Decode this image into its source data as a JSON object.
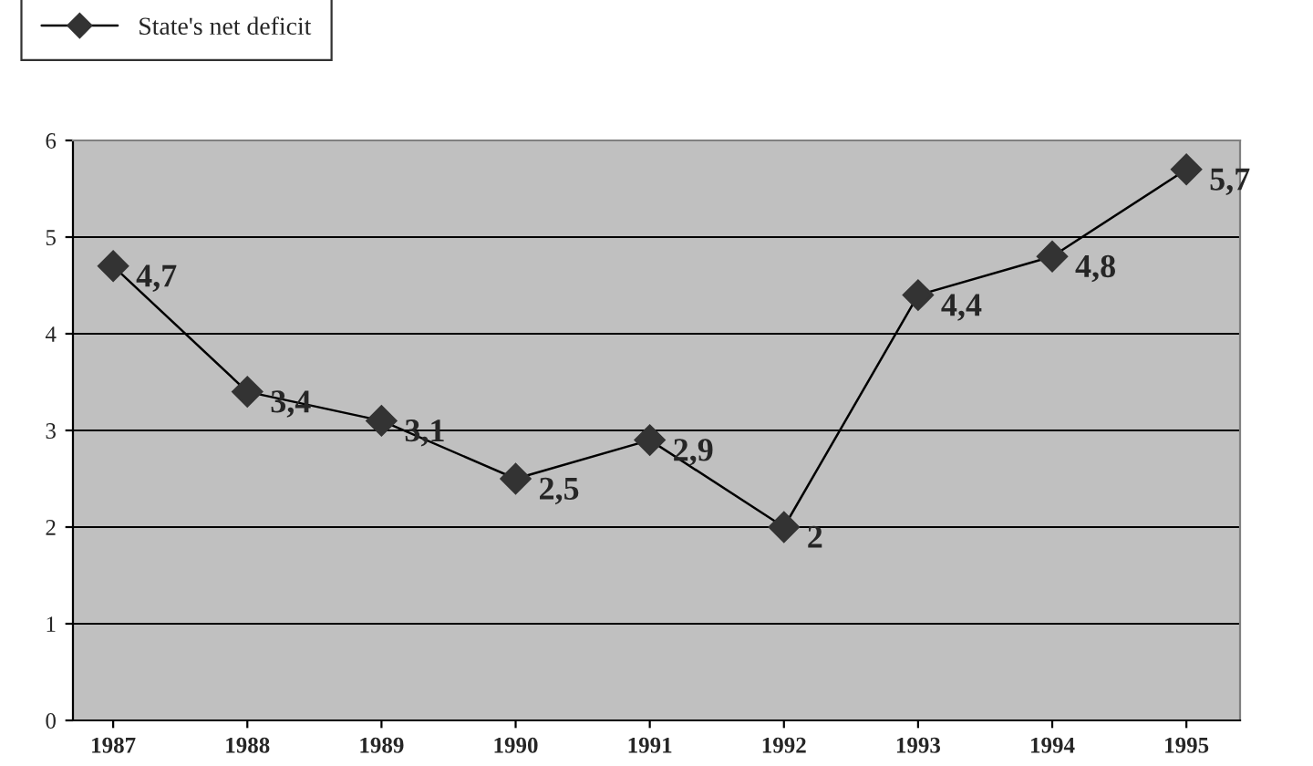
{
  "chart_data": {
    "type": "line",
    "categories": [
      "1987",
      "1988",
      "1989",
      "1990",
      "1991",
      "1992",
      "1993",
      "1994",
      "1995"
    ],
    "series": [
      {
        "name": "State's net deficit",
        "color": "#333333",
        "values": [
          4.7,
          3.4,
          3.1,
          2.5,
          2.9,
          2,
          4.4,
          4.8,
          5.7
        ],
        "value_labels": [
          "4,7",
          "3,4",
          "3,1",
          "2,5",
          "2,9",
          "2",
          "4,4",
          "4,8",
          "5,7"
        ]
      }
    ],
    "ylim": [
      0,
      6
    ],
    "yticks": [
      0,
      1,
      2,
      3,
      4,
      5,
      6
    ],
    "grid": "y",
    "legend": "top left",
    "marker": "diamond",
    "line_style": "solid"
  }
}
